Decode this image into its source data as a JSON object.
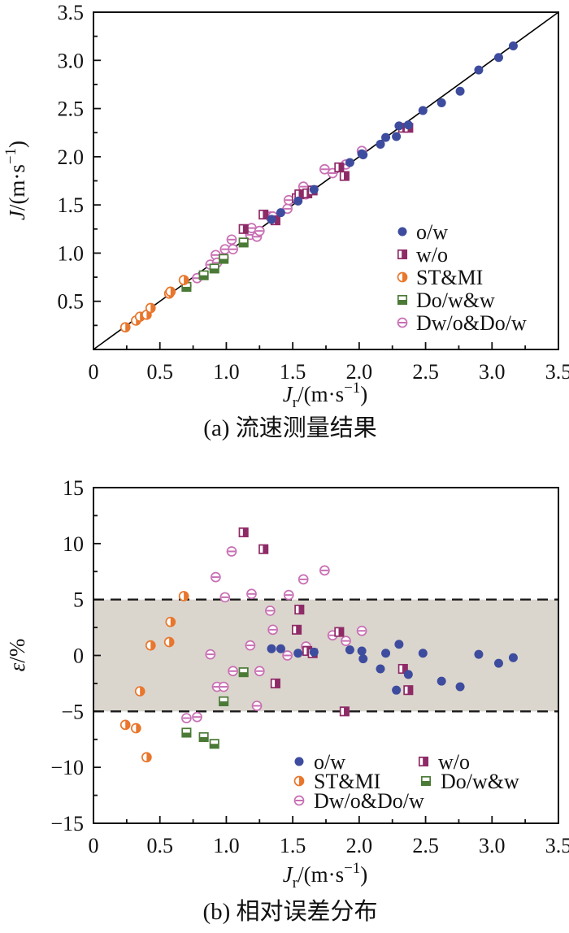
{
  "figure": {
    "caption_a": "(a) 流速测量结果",
    "caption_b": "(b) 相对误差分布"
  },
  "colors": {
    "o_w": "#3D4C9E",
    "w_o": "#8E2B66",
    "st_mi": "#E8762C",
    "do_w_w": "#4A7A36",
    "dw_o_do_w": "#C86FB4",
    "band": "#DBD6CD",
    "axis": "#111111",
    "dashed": "#1a1a1a"
  },
  "chart_data": [
    {
      "id": "a",
      "type": "scatter",
      "title": "(a) 流速测量结果",
      "xlabel": "Jr/(m·s−1)",
      "ylabel": "J/(m·s−1)",
      "xlabel_parts": [
        [
          "J",
          "i"
        ],
        [
          "r",
          "sub"
        ],
        [
          "/(m·s",
          "n"
        ],
        [
          "−1",
          "sup"
        ],
        [
          ")",
          "n"
        ]
      ],
      "ylabel_parts": [
        [
          "J",
          "i"
        ],
        [
          "/(m·s",
          "n"
        ],
        [
          "−1",
          "sup"
        ],
        [
          ")",
          "n"
        ]
      ],
      "xlim": [
        0,
        3.5
      ],
      "ylim": [
        0,
        3.5
      ],
      "grid": false,
      "x_ticks": {
        "major": [
          0,
          0.5,
          1,
          1.5,
          2,
          2.5,
          3,
          3.5
        ],
        "labels": [
          "0",
          "0.5",
          "1.0",
          "1.5",
          "2.0",
          "2.5",
          "3.0",
          "3.5"
        ],
        "minor_step": 0.25
      },
      "y_ticks": {
        "major": [
          0.5,
          1,
          1.5,
          2,
          2.5,
          3,
          3.5
        ],
        "labels": [
          "0.5",
          "1.0",
          "1.5",
          "2.0",
          "2.5",
          "3.0",
          "3.5"
        ],
        "minor_step": 0.25
      },
      "reference_line": {
        "x1": 0,
        "y1": 0,
        "x2": 3.5,
        "y2": 3.5
      },
      "legend_position": "right-middle",
      "series": [
        {
          "name": "o/w",
          "marker": "circle-filled",
          "color": "#3D4C9E",
          "points": [
            [
              1.34,
              1.35
            ],
            [
              1.41,
              1.42
            ],
            [
              1.54,
              1.54
            ],
            [
              1.66,
              1.66
            ],
            [
              1.93,
              1.94
            ],
            [
              2.02,
              2.03
            ],
            [
              2.03,
              2.02
            ],
            [
              2.16,
              2.13
            ],
            [
              2.2,
              2.2
            ],
            [
              2.28,
              2.21
            ],
            [
              2.3,
              2.32
            ],
            [
              2.37,
              2.33
            ],
            [
              2.48,
              2.48
            ],
            [
              2.62,
              2.56
            ],
            [
              2.76,
              2.68
            ],
            [
              2.9,
              2.9
            ],
            [
              3.05,
              3.03
            ],
            [
              3.16,
              3.15
            ]
          ]
        },
        {
          "name": "w/o",
          "marker": "square-half-right",
          "color": "#8E2B66",
          "points": [
            [
              1.13,
              1.25
            ],
            [
              1.28,
              1.4
            ],
            [
              1.37,
              1.34
            ],
            [
              1.53,
              1.57
            ],
            [
              1.55,
              1.61
            ],
            [
              1.61,
              1.62
            ],
            [
              1.65,
              1.65
            ],
            [
              1.85,
              1.89
            ],
            [
              1.89,
              1.8
            ],
            [
              2.33,
              2.3
            ],
            [
              2.37,
              2.3
            ]
          ]
        },
        {
          "name": "ST&MI",
          "marker": "circle-half-right",
          "color": "#E8762C",
          "points": [
            [
              0.24,
              0.23
            ],
            [
              0.32,
              0.3
            ],
            [
              0.35,
              0.34
            ],
            [
              0.4,
              0.36
            ],
            [
              0.43,
              0.43
            ],
            [
              0.57,
              0.58
            ],
            [
              0.58,
              0.6
            ],
            [
              0.68,
              0.72
            ]
          ]
        },
        {
          "name": "Do/w&w",
          "marker": "square-half-bottom",
          "color": "#4A7A36",
          "points": [
            [
              0.7,
              0.65
            ],
            [
              0.83,
              0.77
            ],
            [
              0.91,
              0.84
            ],
            [
              0.98,
              0.94
            ],
            [
              1.13,
              1.11
            ]
          ]
        },
        {
          "name": "Dw/o&Do/w",
          "marker": "circle-hline",
          "color": "#C86FB4",
          "points": [
            [
              0.7,
              0.66
            ],
            [
              0.78,
              0.74
            ],
            [
              0.88,
              0.88
            ],
            [
              0.92,
              0.98
            ],
            [
              0.93,
              0.9
            ],
            [
              0.98,
              0.95
            ],
            [
              0.99,
              1.04
            ],
            [
              1.04,
              1.14
            ],
            [
              1.05,
              1.04
            ],
            [
              1.18,
              1.19
            ],
            [
              1.19,
              1.26
            ],
            [
              1.23,
              1.17
            ],
            [
              1.25,
              1.23
            ],
            [
              1.33,
              1.38
            ],
            [
              1.35,
              1.38
            ],
            [
              1.46,
              1.46
            ],
            [
              1.47,
              1.55
            ],
            [
              1.58,
              1.69
            ],
            [
              1.6,
              1.61
            ],
            [
              1.74,
              1.87
            ],
            [
              1.8,
              1.83
            ],
            [
              1.9,
              1.92
            ],
            [
              2.02,
              2.06
            ]
          ]
        }
      ]
    },
    {
      "id": "b",
      "type": "scatter",
      "title": "(b) 相对误差分布",
      "xlabel": "Jr/(m·s−1)",
      "ylabel": "ε/%",
      "xlabel_parts": [
        [
          "J",
          "i"
        ],
        [
          "r",
          "sub"
        ],
        [
          "/(m·s",
          "n"
        ],
        [
          "−1",
          "sup"
        ],
        [
          ")",
          "n"
        ]
      ],
      "ylabel_parts": [
        [
          "ε",
          "i"
        ],
        [
          "/%",
          "n"
        ]
      ],
      "xlim": [
        0,
        3.5
      ],
      "ylim": [
        -15,
        15
      ],
      "grid": false,
      "x_ticks": {
        "major": [
          0,
          0.5,
          1,
          1.5,
          2,
          2.5,
          3,
          3.5
        ],
        "labels": [
          "0",
          "0.5",
          "1.0",
          "1.5",
          "2.0",
          "2.5",
          "3.0",
          "3.5"
        ],
        "minor_step": 0.25
      },
      "y_ticks": {
        "major": [
          -15,
          -10,
          -5,
          0,
          5,
          10,
          15
        ],
        "labels": [
          "−15",
          "−10",
          "−5",
          "0",
          "5",
          "10",
          "15"
        ],
        "minor_step": 2.5
      },
      "band": {
        "y_min": -5,
        "y_max": 5,
        "color": "#DBD6CD"
      },
      "dashed_lines": {
        "y": [
          5,
          -5
        ],
        "color": "#1a1a1a"
      },
      "legend_position": "bottom-right-2col",
      "series": [
        {
          "name": "o/w",
          "marker": "circle-filled",
          "color": "#3D4C9E",
          "points": [
            [
              1.34,
              0.6
            ],
            [
              1.41,
              0.6
            ],
            [
              1.54,
              0.2
            ],
            [
              1.66,
              0.3
            ],
            [
              1.93,
              0.5
            ],
            [
              2.02,
              0.4
            ],
            [
              2.03,
              -0.3
            ],
            [
              2.16,
              -1.2
            ],
            [
              2.2,
              0.2
            ],
            [
              2.28,
              -3.1
            ],
            [
              2.3,
              1.0
            ],
            [
              2.37,
              -1.7
            ],
            [
              2.48,
              0.2
            ],
            [
              2.62,
              -2.3
            ],
            [
              2.76,
              -2.8
            ],
            [
              2.9,
              0.1
            ],
            [
              3.05,
              -0.7
            ],
            [
              3.16,
              -0.2
            ]
          ]
        },
        {
          "name": "w/o",
          "marker": "square-half-right",
          "color": "#8E2B66",
          "points": [
            [
              1.13,
              11.0
            ],
            [
              1.28,
              9.5
            ],
            [
              1.37,
              -2.5
            ],
            [
              1.53,
              2.3
            ],
            [
              1.55,
              4.1
            ],
            [
              1.61,
              0.4
            ],
            [
              1.65,
              0.2
            ],
            [
              1.85,
              2.1
            ],
            [
              1.89,
              -5.0
            ],
            [
              2.33,
              -1.2
            ],
            [
              2.37,
              -3.1
            ]
          ]
        },
        {
          "name": "ST&MI",
          "marker": "circle-half-right",
          "color": "#E8762C",
          "points": [
            [
              0.24,
              -6.2
            ],
            [
              0.32,
              -6.5
            ],
            [
              0.35,
              -3.2
            ],
            [
              0.4,
              -9.1
            ],
            [
              0.43,
              0.9
            ],
            [
              0.57,
              1.2
            ],
            [
              0.58,
              3.0
            ],
            [
              0.68,
              5.3
            ]
          ]
        },
        {
          "name": "Do/w&w",
          "marker": "square-half-bottom",
          "color": "#4A7A36",
          "points": [
            [
              0.7,
              -6.9
            ],
            [
              0.83,
              -7.3
            ],
            [
              0.91,
              -7.9
            ],
            [
              0.98,
              -4.1
            ],
            [
              1.13,
              -1.5
            ]
          ]
        },
        {
          "name": "Dw/o&Do/w",
          "marker": "circle-hline",
          "color": "#C86FB4",
          "points": [
            [
              0.7,
              -5.6
            ],
            [
              0.78,
              -5.5
            ],
            [
              0.88,
              0.1
            ],
            [
              0.92,
              7.0
            ],
            [
              0.93,
              -2.8
            ],
            [
              0.98,
              -2.8
            ],
            [
              0.99,
              5.2
            ],
            [
              1.04,
              9.3
            ],
            [
              1.05,
              -1.4
            ],
            [
              1.18,
              0.9
            ],
            [
              1.19,
              5.5
            ],
            [
              1.23,
              -4.5
            ],
            [
              1.25,
              -1.4
            ],
            [
              1.33,
              4.0
            ],
            [
              1.35,
              2.3
            ],
            [
              1.46,
              0.0
            ],
            [
              1.47,
              5.4
            ],
            [
              1.58,
              6.8
            ],
            [
              1.6,
              0.8
            ],
            [
              1.74,
              7.6
            ],
            [
              1.8,
              1.8
            ],
            [
              1.9,
              1.3
            ],
            [
              2.02,
              2.2
            ]
          ]
        }
      ]
    }
  ]
}
